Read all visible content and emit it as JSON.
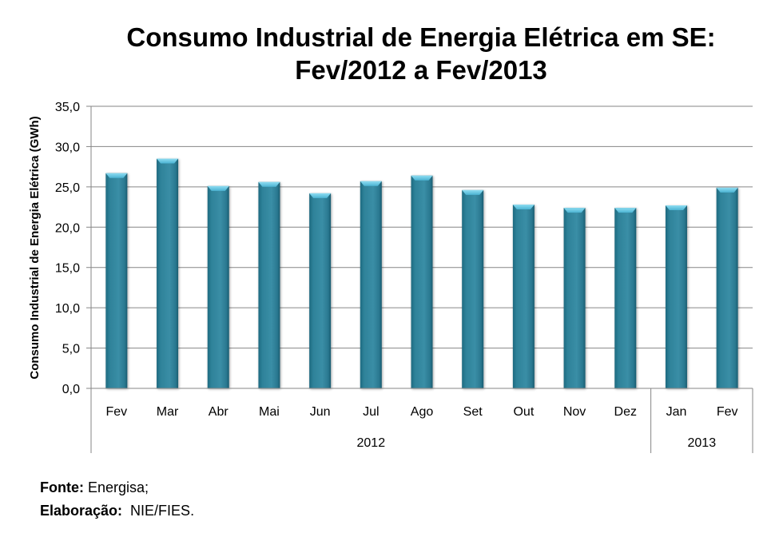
{
  "chart_data": {
    "type": "bar",
    "title_lines": [
      "Consumo Industrial de Energia Elétrica em SE:",
      "Fev/2012 a Fev/2013"
    ],
    "ylabel": "Consumo Industrial de Energia Elétrica (GWh)",
    "xlabel": "",
    "ylim": [
      0,
      35
    ],
    "yticks": [
      "0,0",
      "5,0",
      "10,0",
      "15,0",
      "20,0",
      "25,0",
      "30,0",
      "35,0"
    ],
    "ytick_values": [
      0,
      5,
      10,
      15,
      20,
      25,
      30,
      35
    ],
    "grid": true,
    "categories": [
      "Fev",
      "Mar",
      "Abr",
      "Mai",
      "Jun",
      "Jul",
      "Ago",
      "Set",
      "Out",
      "Nov",
      "Dez",
      "Jan",
      "Fev"
    ],
    "groups": [
      {
        "label": "2012",
        "count": 11
      },
      {
        "label": "2013",
        "count": 2
      }
    ],
    "series": [
      {
        "name": "Consumo Industrial de Energia Elétrica (GWh)",
        "values": [
          26.7,
          28.5,
          25.1,
          25.6,
          24.2,
          25.7,
          26.4,
          24.6,
          22.8,
          22.4,
          22.4,
          22.7,
          24.9
        ],
        "color": "#2E8299"
      }
    ]
  },
  "footer": {
    "source_label": "Fonte:",
    "source_value": " Energisa;",
    "elaboration_label": "Elaboração:",
    "elaboration_value": "  NIE/FIES."
  },
  "colors": {
    "bar": "#2E8299",
    "bar_top": "#5CC4E0",
    "grid": "#868686"
  }
}
